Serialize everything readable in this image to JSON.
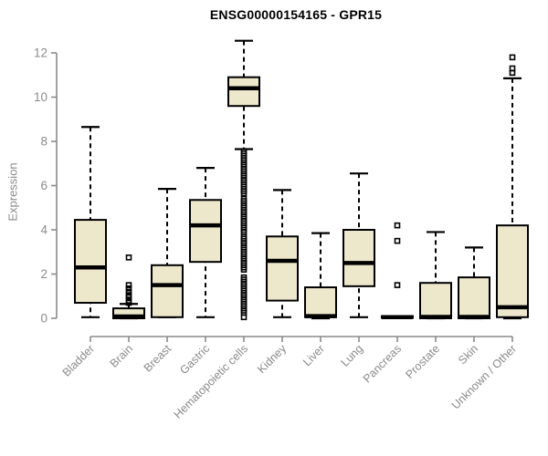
{
  "style": {
    "box_fill": "#EDE7CC",
    "box_stroke": "#000000",
    "median_color": "#000000",
    "whisker_color": "#000000",
    "axis_color": "#8a8a8a",
    "tick_label_color": "#8a8a8a",
    "title_color": "#000000",
    "background": "#ffffff"
  },
  "chart_data": {
    "type": "boxplot",
    "title": "ENSG00000154165 - GPR15",
    "xlabel": "",
    "ylabel": "Expression",
    "ylim": [
      0,
      12
    ],
    "yticks": [
      0,
      2,
      4,
      6,
      8,
      10,
      12
    ],
    "grid": "off",
    "categories": [
      "Bladder",
      "Brain",
      "Breast",
      "Gastric",
      "Hematopoietic cells",
      "Kidney",
      "Liver",
      "Lung",
      "Pancreas",
      "Prostate",
      "Skin",
      "Unknown / Other"
    ],
    "series": [
      {
        "name": "Bladder",
        "whisker_low": 0.05,
        "q1": 0.7,
        "median": 2.3,
        "q3": 4.45,
        "whisker_high": 8.65,
        "outliers": []
      },
      {
        "name": "Brain",
        "whisker_low": 0.0,
        "q1": 0.0,
        "median": 0.08,
        "q3": 0.45,
        "whisker_high": 0.65,
        "outliers": [
          0.7,
          0.8,
          0.95,
          1.05,
          1.2,
          1.35,
          1.5,
          2.75
        ]
      },
      {
        "name": "Breast",
        "whisker_low": 0.05,
        "q1": 0.05,
        "median": 1.5,
        "q3": 2.4,
        "whisker_high": 5.85,
        "outliers": []
      },
      {
        "name": "Gastric",
        "whisker_low": 0.05,
        "q1": 2.55,
        "median": 4.2,
        "q3": 5.35,
        "whisker_high": 6.8,
        "outliers": []
      },
      {
        "name": "Hematopoietic cells",
        "whisker_low": 7.65,
        "q1": 9.6,
        "median": 10.4,
        "q3": 10.9,
        "whisker_high": 12.55,
        "outliers": [
          7.55,
          7.45,
          7.35,
          7.25,
          7.15,
          7.05,
          6.95,
          6.85,
          6.75,
          6.65,
          6.55,
          6.45,
          6.35,
          6.25,
          6.15,
          6.05,
          5.95,
          5.85,
          5.75,
          5.65,
          5.4,
          5.3,
          5.2,
          5.1,
          5.0,
          4.9,
          4.8,
          4.7,
          4.6,
          4.5,
          4.4,
          4.3,
          4.2,
          4.1,
          4.0,
          3.9,
          3.7,
          3.6,
          3.5,
          3.4,
          3.3,
          3.2,
          3.1,
          3.0,
          2.9,
          2.8,
          2.7,
          2.6,
          2.5,
          2.4,
          2.3,
          2.2,
          1.85,
          1.75,
          1.65,
          1.55,
          1.45,
          1.35,
          1.25,
          1.15,
          1.05,
          0.95,
          0.85,
          0.75,
          0.65,
          0.55,
          0.45,
          0.35,
          0.25,
          0.05
        ]
      },
      {
        "name": "Kidney",
        "whisker_low": 0.05,
        "q1": 0.8,
        "median": 2.6,
        "q3": 3.7,
        "whisker_high": 5.8,
        "outliers": []
      },
      {
        "name": "Liver",
        "whisker_low": 0.0,
        "q1": 0.05,
        "median": 0.1,
        "q3": 1.4,
        "whisker_high": 3.85,
        "outliers": []
      },
      {
        "name": "Lung",
        "whisker_low": 0.05,
        "q1": 1.45,
        "median": 2.5,
        "q3": 4.0,
        "whisker_high": 6.55,
        "outliers": []
      },
      {
        "name": "Pancreas",
        "whisker_low": 0.02,
        "q1": 0.02,
        "median": 0.05,
        "q3": 0.1,
        "whisker_high": 0.1,
        "outliers": [
          4.2,
          3.5,
          1.5
        ]
      },
      {
        "name": "Prostate",
        "whisker_low": 0.0,
        "q1": 0.0,
        "median": 0.06,
        "q3": 1.6,
        "whisker_high": 3.9,
        "outliers": []
      },
      {
        "name": "Skin",
        "whisker_low": 0.0,
        "q1": 0.0,
        "median": 0.06,
        "q3": 1.85,
        "whisker_high": 3.2,
        "outliers": []
      },
      {
        "name": "Unknown / Other",
        "whisker_low": 0.0,
        "q1": 0.05,
        "median": 0.5,
        "q3": 4.2,
        "whisker_high": 10.85,
        "outliers": [
          11.1,
          11.3,
          11.8
        ]
      }
    ]
  }
}
